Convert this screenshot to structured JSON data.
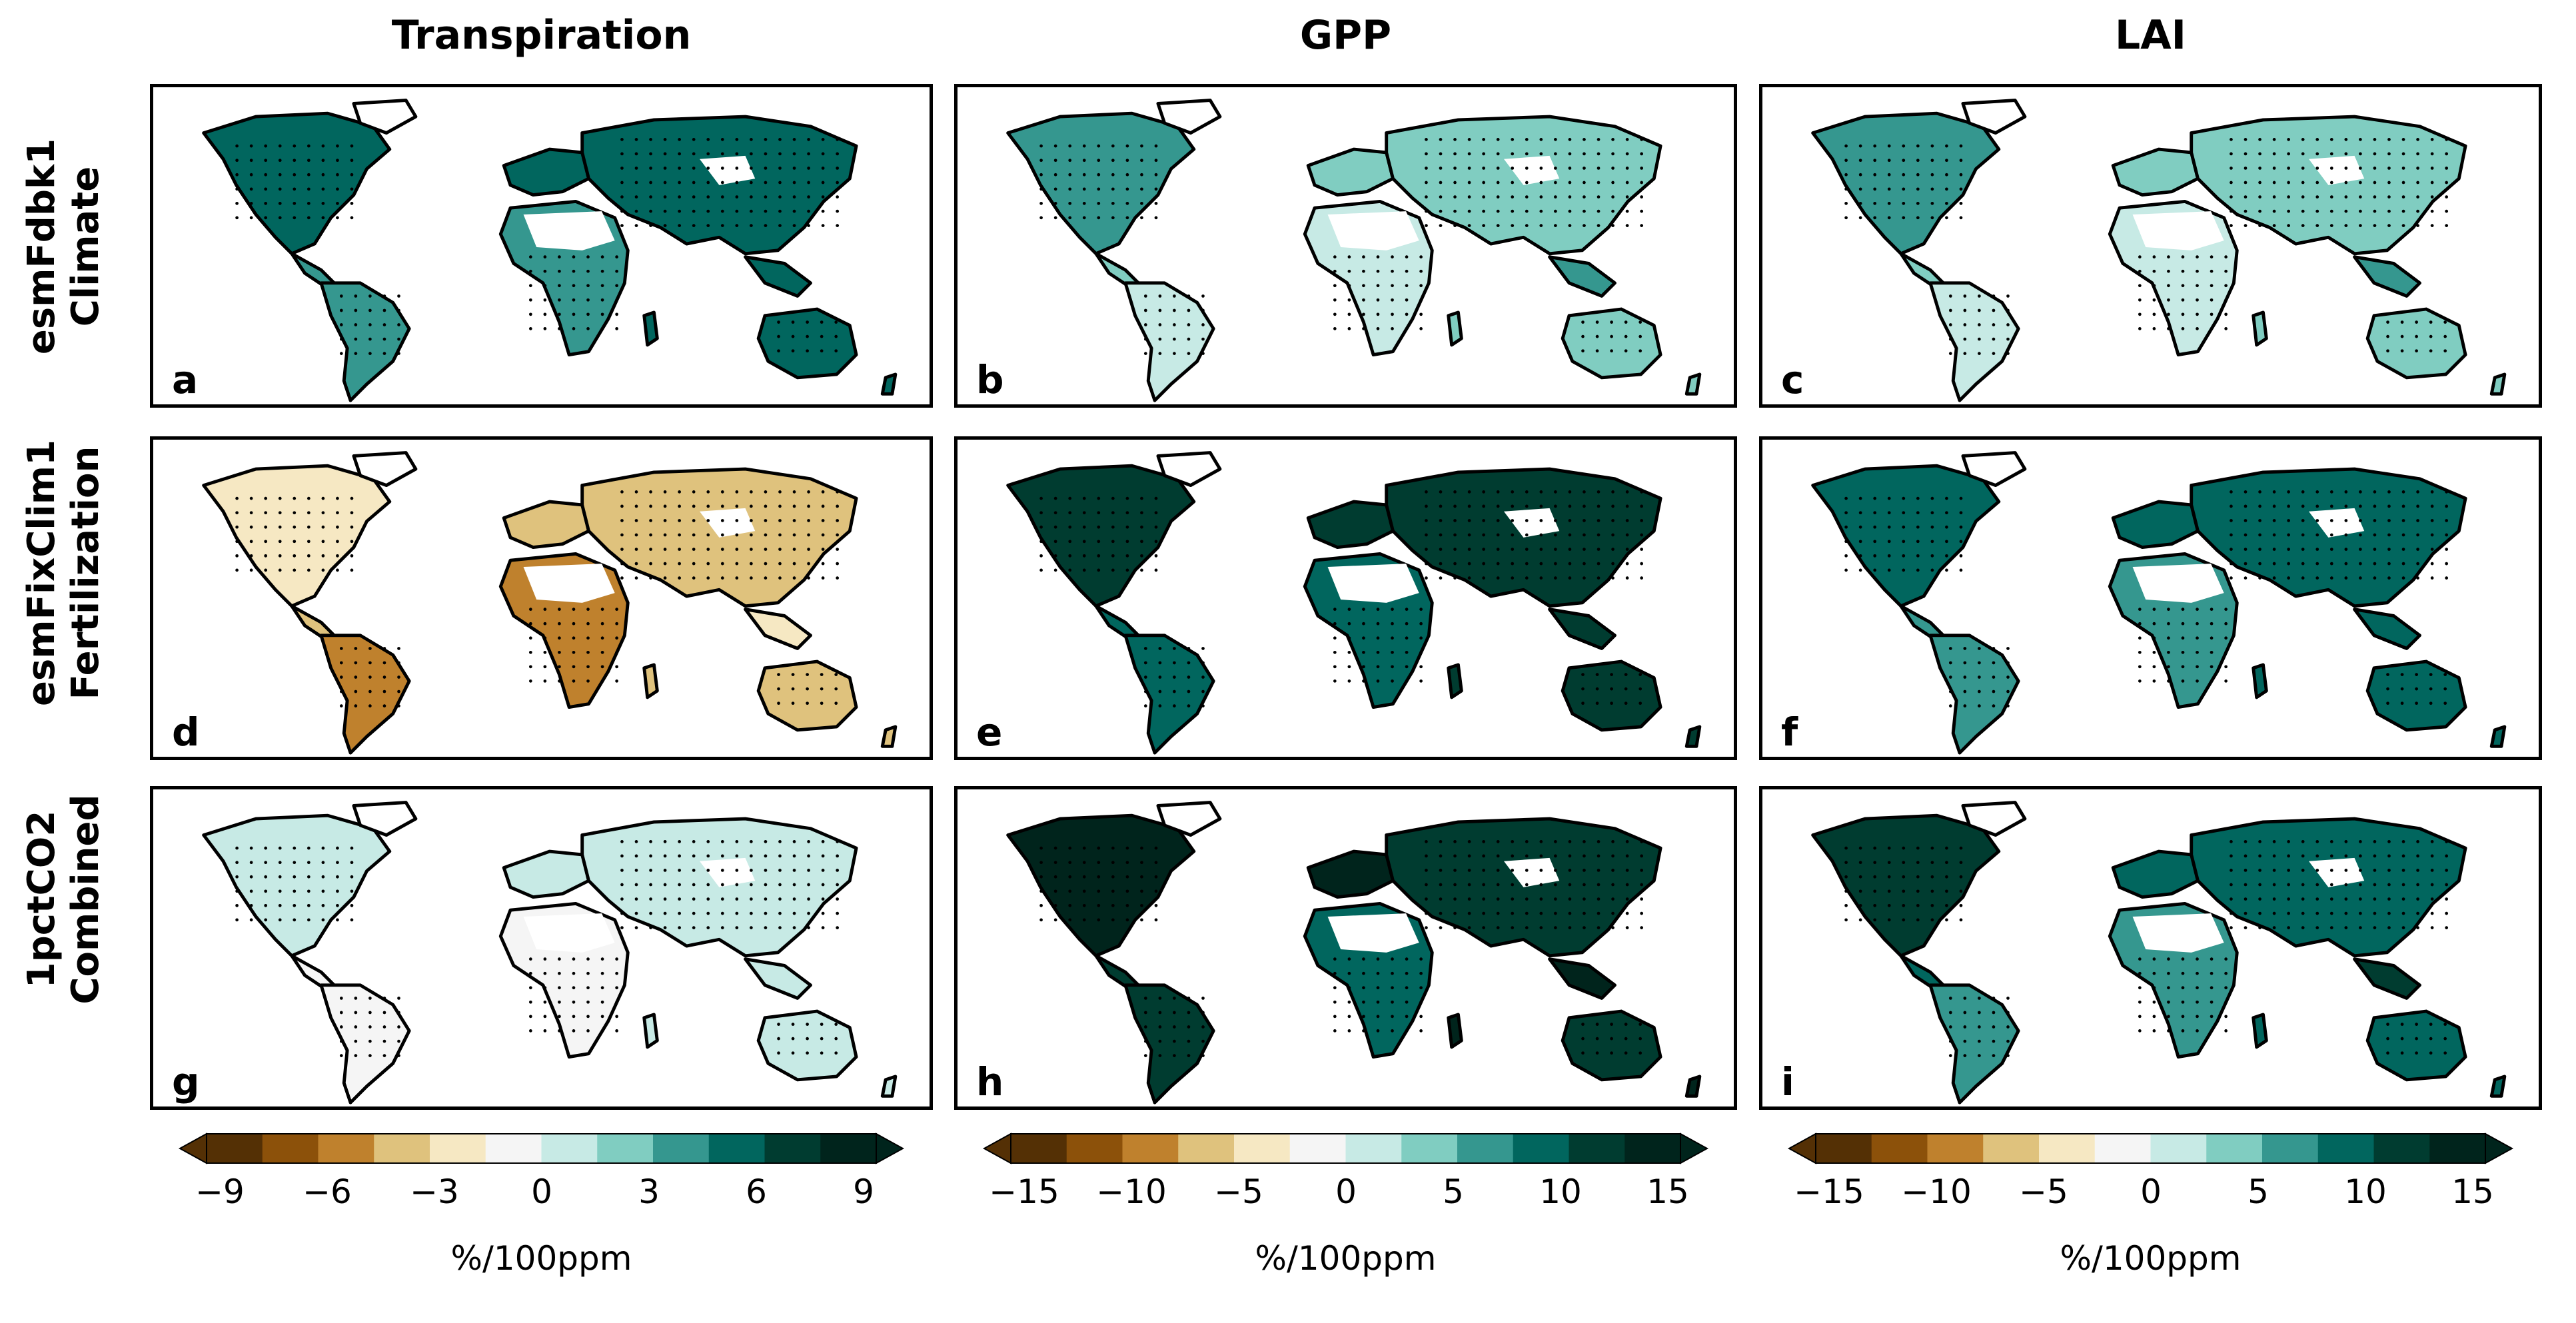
{
  "figure": {
    "columns": [
      "Transpiration",
      "GPP",
      "LAI"
    ],
    "rows": [
      {
        "line1": "esmFdbk1",
        "line2": "Climate"
      },
      {
        "line1": "esmFixClim1",
        "line2": "Fertilization"
      },
      {
        "line1": "1pctCO2",
        "line2": "Combined"
      }
    ],
    "panels": [
      {
        "letter": "a",
        "variable": "Transpiration",
        "experiment": "esmFdbk1",
        "tone": 0.55
      },
      {
        "letter": "b",
        "variable": "GPP",
        "experiment": "esmFdbk1",
        "tone": 0.3
      },
      {
        "letter": "c",
        "variable": "LAI",
        "experiment": "esmFdbk1",
        "tone": 0.3
      },
      {
        "letter": "d",
        "variable": "Transpiration",
        "experiment": "esmFixClim1",
        "tone": -0.45
      },
      {
        "letter": "e",
        "variable": "GPP",
        "experiment": "esmFixClim1",
        "tone": 0.75
      },
      {
        "letter": "f",
        "variable": "LAI",
        "experiment": "esmFixClim1",
        "tone": 0.6
      },
      {
        "letter": "g",
        "variable": "Transpiration",
        "experiment": "1pctCO2",
        "tone": 0.05
      },
      {
        "letter": "h",
        "variable": "GPP",
        "experiment": "1pctCO2",
        "tone": 0.85
      },
      {
        "letter": "i",
        "variable": "LAI",
        "experiment": "1pctCO2",
        "tone": 0.65
      }
    ],
    "colorbars": [
      {
        "ticks": [
          "−9",
          "−6",
          "−3",
          "0",
          "3",
          "6",
          "9"
        ],
        "unit": "%/100ppm"
      },
      {
        "ticks": [
          "−15",
          "−10",
          "−5",
          "0",
          "5",
          "10",
          "15"
        ],
        "unit": "%/100ppm"
      },
      {
        "ticks": [
          "−15",
          "−10",
          "−5",
          "0",
          "5",
          "10",
          "15"
        ],
        "unit": "%/100ppm"
      }
    ],
    "palette": [
      "#543005",
      "#8c510a",
      "#bf812d",
      "#dfc27d",
      "#f6e8c3",
      "#f5f5f5",
      "#c7eae5",
      "#80cdc1",
      "#35978f",
      "#01665e",
      "#003c30",
      "#00241c"
    ]
  }
}
